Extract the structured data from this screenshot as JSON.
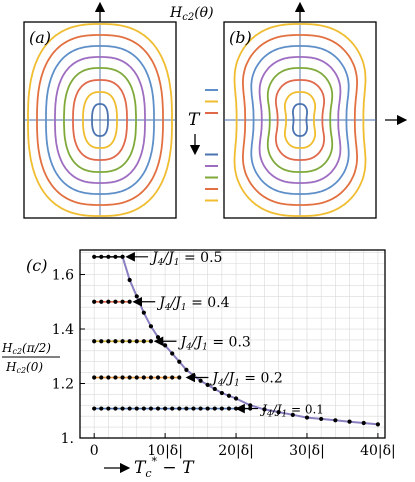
{
  "panel_labels": {
    "a": "(a)",
    "b": "(b)",
    "c": "(c)"
  },
  "top_axis_label": "H_c2(θ)",
  "temperature_label": "T",
  "colors": [
    "#5e8fc9",
    "#f0bd31",
    "#e0694a",
    "#4b73b0",
    "#9e6dc0",
    "#7faa3a",
    "#e27040",
    "#f0bd31"
  ],
  "chart_data": [
    {
      "type": "line",
      "panel": "(a)",
      "description_free": true,
      "series": [
        {
          "values": []
        }
      ]
    },
    {
      "type": "line",
      "panel": "(b)",
      "series": [
        {
          "values": []
        }
      ]
    },
    {
      "type": "scatter",
      "panel": "(c)",
      "xlabel": "T_c^* − T",
      "ylabel": "H_c2(π/2) / H_c2(0)",
      "xlim": [
        -2,
        41
      ],
      "ylim": [
        1.0,
        1.69
      ],
      "xticks": [
        0,
        10,
        20,
        30,
        40
      ],
      "xtick_labels": [
        "0",
        "10|δ|",
        "20|δ|",
        "30|δ|",
        "40|δ|"
      ],
      "yticks": [
        1.0,
        1.2,
        1.4,
        1.6
      ],
      "ytick_labels": [
        "1.",
        "1.2",
        "1.4",
        "1.6"
      ],
      "grid": true,
      "series": [
        {
          "name": "J_4/J_1 = 0.5",
          "plateau": 1.665,
          "plateau_color": "#1f1f1f",
          "onset": 4
        },
        {
          "name": "J_4/J_1 = 0.4",
          "plateau": 1.5,
          "plateau_color": "#e0694a",
          "onset": 5
        },
        {
          "name": "J_4/J_1 = 0.3",
          "plateau": 1.355,
          "plateau_color": "#d4b832",
          "onset": 8
        },
        {
          "name": "J_4/J_1 = 0.2",
          "plateau": 1.222,
          "plateau_color": "#e8983a",
          "onset": 12
        },
        {
          "name": "J_4/J_1 = 0.1",
          "plateau": 1.108,
          "plateau_color": "#4b73b0",
          "onset": 22
        }
      ],
      "envelope": {
        "x": [
          4,
          5,
          6,
          7,
          8,
          9,
          10,
          11,
          12,
          13,
          14,
          15,
          16,
          17,
          18,
          19,
          20,
          22,
          24,
          26,
          28,
          30,
          32,
          34,
          36,
          38,
          40
        ],
        "y": [
          1.665,
          1.58,
          1.52,
          1.46,
          1.41,
          1.37,
          1.34,
          1.31,
          1.28,
          1.25,
          1.23,
          1.21,
          1.195,
          1.18,
          1.165,
          1.155,
          1.145,
          1.12,
          1.105,
          1.095,
          1.085,
          1.075,
          1.07,
          1.065,
          1.06,
          1.055,
          1.05
        ],
        "color": "#8a7fc0"
      },
      "annotations": [
        {
          "text": "J_4/J_1 = 0.5",
          "x": 4.5,
          "y": 1.665
        },
        {
          "text": "J_4/J_1 = 0.4",
          "x": 5.5,
          "y": 1.5
        },
        {
          "text": "J_4/J_1 = 0.3",
          "x": 8.5,
          "y": 1.355
        },
        {
          "text": "J_4/J_1 = 0.2",
          "x": 13,
          "y": 1.222
        },
        {
          "text": "J_4/J_1 = 0.1",
          "x": 20,
          "y": 1.108
        }
      ]
    }
  ]
}
